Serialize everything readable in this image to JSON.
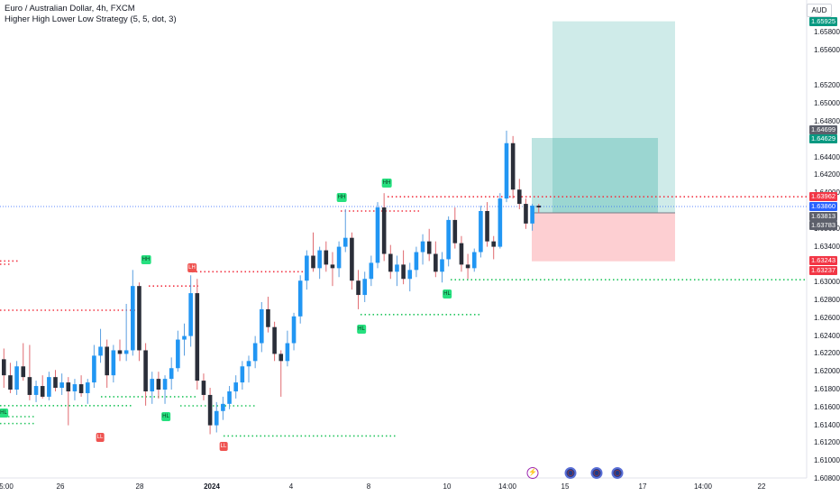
{
  "legend": {
    "symbol_line": "Euro / Australian Dollar, 4h, FXCM",
    "indicator_line": "Higher High Lower Low Strategy (5, 5, dot, 3)"
  },
  "currency": "AUD",
  "colors": {
    "up": "#2196f3",
    "down": "#2a2e39",
    "resistance": "#f23645",
    "support": "#22c55e",
    "profit_zone": "#26a69a",
    "loss_zone": "#f7525f"
  },
  "price_axis": {
    "ticks": [
      "1.65800",
      "1.65600",
      "1.65200",
      "1.65000",
      "1.64800",
      "1.64400",
      "1.64200",
      "1.64000",
      "1.63600",
      "1.63400",
      "1.63000",
      "1.62800",
      "1.62600",
      "1.62400",
      "1.62200",
      "1.62000",
      "1.61800",
      "1.61600",
      "1.61400",
      "1.61200",
      "1.61000",
      "1.60800"
    ],
    "labels": [
      {
        "text": "1.65925",
        "color": "#089981"
      },
      {
        "text": "1.64699",
        "color": "#5d606b"
      },
      {
        "text": "1.64629",
        "color": "#089981"
      },
      {
        "text": "1.63962",
        "color": "#f23645"
      },
      {
        "text": "1.63860",
        "color": "#2962ff"
      },
      {
        "text": "1.63813",
        "color": "#5d606b"
      },
      {
        "text": "1.63783",
        "color": "#5d606b"
      },
      {
        "text": "1.63243",
        "color": "#f23645"
      },
      {
        "text": "1.63237",
        "color": "#f23645"
      }
    ]
  },
  "time_axis": [
    "5:00",
    "26",
    "28",
    "2024",
    "4",
    "8",
    "10",
    "14:00",
    "15",
    "17",
    "14:00",
    "22"
  ],
  "markers": [
    {
      "text": "HH",
      "kind": "hh"
    },
    {
      "text": "LH",
      "kind": "ll"
    },
    {
      "text": "HH",
      "kind": "hh"
    },
    {
      "text": "HH",
      "kind": "hh"
    },
    {
      "text": "HL",
      "kind": "hh"
    },
    {
      "text": "HL",
      "kind": "hh"
    },
    {
      "text": "HL",
      "kind": "hh"
    },
    {
      "text": "HL",
      "kind": "hh"
    },
    {
      "text": "LL",
      "kind": "ll"
    },
    {
      "text": "LL",
      "kind": "ll"
    }
  ],
  "events": [
    {
      "name": "lightning-event-icon",
      "glyph": "⚡"
    },
    {
      "name": "flag-event-icon-1",
      "glyph": ""
    },
    {
      "name": "flag-event-icon-2",
      "glyph": ""
    },
    {
      "name": "flag-event-icon-3",
      "glyph": ""
    }
  ],
  "chart_data": {
    "type": "candlestick",
    "title": "Euro / Australian Dollar, 4h, FXCM",
    "ylim": [
      1.607,
      1.6602
    ],
    "ohlc": [
      [
        1.6214,
        1.6226,
        1.6182,
        1.6196
      ],
      [
        1.6196,
        1.621,
        1.6176,
        1.618
      ],
      [
        1.618,
        1.6212,
        1.6174,
        1.6206
      ],
      [
        1.6206,
        1.6232,
        1.619,
        1.6194
      ],
      [
        1.6194,
        1.623,
        1.6168,
        1.6174
      ],
      [
        1.6174,
        1.619,
        1.6166,
        1.6184
      ],
      [
        1.6184,
        1.6196,
        1.617,
        1.6172
      ],
      [
        1.6172,
        1.62,
        1.6168,
        1.6194
      ],
      [
        1.6194,
        1.6202,
        1.6178,
        1.6182
      ],
      [
        1.6182,
        1.6198,
        1.6174,
        1.6188
      ],
      [
        1.6188,
        1.6194,
        1.614,
        1.6178
      ],
      [
        1.6178,
        1.6192,
        1.6168,
        1.6186
      ],
      [
        1.6186,
        1.6196,
        1.6172,
        1.6176
      ],
      [
        1.6176,
        1.6192,
        1.6164,
        1.6188
      ],
      [
        1.6188,
        1.623,
        1.6182,
        1.6218
      ],
      [
        1.6218,
        1.6248,
        1.621,
        1.6228
      ],
      [
        1.6228,
        1.6236,
        1.6182,
        1.6196
      ],
      [
        1.6196,
        1.623,
        1.6188,
        1.6224
      ],
      [
        1.6224,
        1.6236,
        1.6212,
        1.622
      ],
      [
        1.622,
        1.6276,
        1.6212,
        1.6224
      ],
      [
        1.6224,
        1.6314,
        1.6218,
        1.6296
      ],
      [
        1.6296,
        1.63,
        1.6212,
        1.6224
      ],
      [
        1.6224,
        1.6232,
        1.6162,
        1.6178
      ],
      [
        1.6178,
        1.62,
        1.6164,
        1.6192
      ],
      [
        1.6192,
        1.62,
        1.617,
        1.618
      ],
      [
        1.618,
        1.6196,
        1.6164,
        1.6192
      ],
      [
        1.6192,
        1.6216,
        1.618,
        1.6204
      ],
      [
        1.6204,
        1.6246,
        1.62,
        1.6236
      ],
      [
        1.6236,
        1.6254,
        1.6218,
        1.624
      ],
      [
        1.624,
        1.6308,
        1.6228,
        1.6288
      ],
      [
        1.6288,
        1.6304,
        1.618,
        1.619
      ],
      [
        1.619,
        1.6198,
        1.6168,
        1.6174
      ],
      [
        1.6174,
        1.6182,
        1.613,
        1.614
      ],
      [
        1.614,
        1.6166,
        1.6132,
        1.6156
      ],
      [
        1.6156,
        1.6172,
        1.6146,
        1.6164
      ],
      [
        1.6164,
        1.6184,
        1.6158,
        1.6178
      ],
      [
        1.6178,
        1.6196,
        1.617,
        1.6188
      ],
      [
        1.6188,
        1.6212,
        1.618,
        1.6206
      ],
      [
        1.6206,
        1.6218,
        1.6188,
        1.6212
      ],
      [
        1.6212,
        1.624,
        1.6204,
        1.6232
      ],
      [
        1.6232,
        1.6278,
        1.6222,
        1.627
      ],
      [
        1.627,
        1.6284,
        1.6244,
        1.625
      ],
      [
        1.625,
        1.6256,
        1.6212,
        1.622
      ],
      [
        1.622,
        1.6224,
        1.6172,
        1.6212
      ],
      [
        1.6212,
        1.6246,
        1.6206,
        1.6232
      ],
      [
        1.6232,
        1.6266,
        1.6224,
        1.6262
      ],
      [
        1.6262,
        1.6308,
        1.6254,
        1.6302
      ],
      [
        1.6302,
        1.6336,
        1.6292,
        1.633
      ],
      [
        1.633,
        1.6356,
        1.6312,
        1.6316
      ],
      [
        1.6316,
        1.634,
        1.6304,
        1.6336
      ],
      [
        1.6336,
        1.6346,
        1.6312,
        1.632
      ],
      [
        1.632,
        1.6334,
        1.6296,
        1.6316
      ],
      [
        1.6316,
        1.6346,
        1.6306,
        1.634
      ],
      [
        1.634,
        1.6382,
        1.6334,
        1.635
      ],
      [
        1.635,
        1.6356,
        1.6292,
        1.6302
      ],
      [
        1.6302,
        1.6314,
        1.627,
        1.6286
      ],
      [
        1.6286,
        1.6312,
        1.6278,
        1.6304
      ],
      [
        1.6304,
        1.633,
        1.6296,
        1.6322
      ],
      [
        1.6322,
        1.639,
        1.6316,
        1.6384
      ],
      [
        1.6384,
        1.64,
        1.6324,
        1.6332
      ],
      [
        1.6332,
        1.6342,
        1.6304,
        1.6312
      ],
      [
        1.6312,
        1.633,
        1.6296,
        1.632
      ],
      [
        1.632,
        1.6336,
        1.6298,
        1.6304
      ],
      [
        1.6304,
        1.6322,
        1.629,
        1.6314
      ],
      [
        1.6314,
        1.634,
        1.6306,
        1.6334
      ],
      [
        1.6334,
        1.6354,
        1.632,
        1.6346
      ],
      [
        1.6346,
        1.636,
        1.6324,
        1.6332
      ],
      [
        1.6332,
        1.6346,
        1.6306,
        1.6312
      ],
      [
        1.6312,
        1.6334,
        1.63,
        1.6326
      ],
      [
        1.6326,
        1.6374,
        1.6318,
        1.637
      ],
      [
        1.637,
        1.6384,
        1.6338,
        1.6344
      ],
      [
        1.6344,
        1.6352,
        1.6312,
        1.632
      ],
      [
        1.632,
        1.6332,
        1.6304,
        1.6316
      ],
      [
        1.6316,
        1.6338,
        1.6312,
        1.6334
      ],
      [
        1.6334,
        1.6386,
        1.6328,
        1.638
      ],
      [
        1.638,
        1.639,
        1.634,
        1.6346
      ],
      [
        1.6346,
        1.6352,
        1.6326,
        1.634
      ],
      [
        1.634,
        1.64,
        1.6338,
        1.6394
      ],
      [
        1.6394,
        1.647,
        1.639,
        1.6456
      ],
      [
        1.6456,
        1.6464,
        1.6394,
        1.6404
      ],
      [
        1.6404,
        1.6416,
        1.6382,
        1.6388
      ],
      [
        1.6388,
        1.6394,
        1.636,
        1.6366
      ],
      [
        1.6366,
        1.6388,
        1.6358,
        1.6386
      ],
      [
        1.6386,
        1.6388,
        1.6378,
        1.6384
      ]
    ],
    "levels": [
      {
        "kind": "resistance",
        "price": 1.6396
      },
      {
        "kind": "resistance",
        "price": 1.638
      },
      {
        "kind": "resistance",
        "price": 1.6324
      },
      {
        "kind": "resistance",
        "price": 1.6312
      },
      {
        "kind": "resistance",
        "price": 1.6296
      },
      {
        "kind": "support",
        "price": 1.6303
      },
      {
        "kind": "support",
        "price": 1.6264
      },
      {
        "kind": "support",
        "price": 1.6162
      },
      {
        "kind": "support",
        "price": 1.6172
      },
      {
        "kind": "support",
        "price": 1.6142
      },
      {
        "kind": "support",
        "price": 1.6128
      }
    ],
    "position": {
      "entry": 1.6378,
      "target": 1.65925,
      "stop": 1.63237
    }
  }
}
